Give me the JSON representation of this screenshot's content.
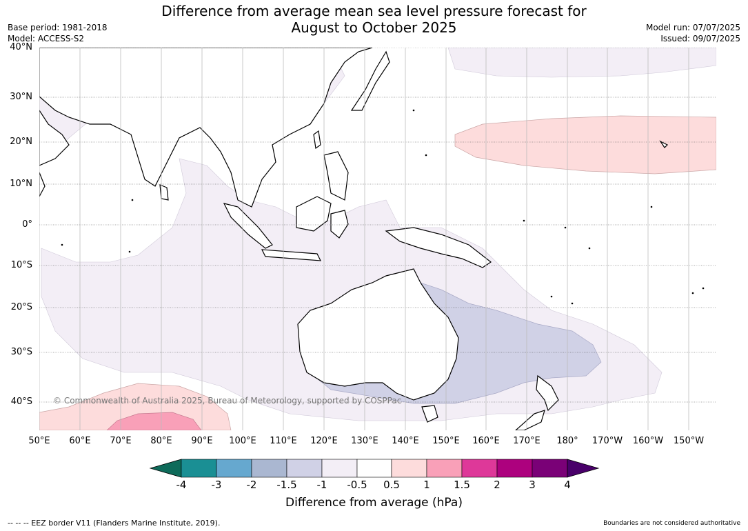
{
  "title": {
    "line1": "Difference from average mean sea level pressure forecast for",
    "line2": "August to October 2025"
  },
  "meta": {
    "base_period": "Base period: 1981-2018",
    "model": "Model: ACCESS-S2",
    "model_run": "Model run: 07/07/2025",
    "issued": "Issued: 09/07/2025"
  },
  "map": {
    "lat_labels": [
      "40°N",
      "30°N",
      "20°N",
      "10°N",
      "0°",
      "10°S",
      "20°S",
      "30°S",
      "40°S"
    ],
    "lon_labels": [
      "50°E",
      "60°E",
      "70°E",
      "80°E",
      "90°E",
      "100°E",
      "110°E",
      "120°E",
      "130°E",
      "140°E",
      "150°E",
      "160°E",
      "170°E",
      "180°",
      "170°W",
      "160°W",
      "150°W"
    ],
    "copyright": "© Commonwealth of Australia 2025, Bureau of Meteorology, supported by COSPPac"
  },
  "colorbar": {
    "labels": [
      "-4",
      "-3",
      "-2",
      "-1.5",
      "-1",
      "-0.5",
      "0.5",
      "1",
      "1.5",
      "2",
      "3",
      "4"
    ],
    "low_extend_color": "#0e6b5a",
    "colors": [
      "#1a8f94",
      "#66a8cf",
      "#aab7d1",
      "#d0d1e6",
      "#f3eef6",
      "#ffffff",
      "#fddcdc",
      "#f9a0b8",
      "#de3899",
      "#ad017e",
      "#7a0177"
    ],
    "high_extend_color": "#49006a",
    "title": "Difference from average (hPa)"
  },
  "footer": {
    "eez": "--  --  -- EEZ border V11 (Flanders Marine Institute, 2019).",
    "disclaimer": "Boundaries are not considered authoritative"
  }
}
